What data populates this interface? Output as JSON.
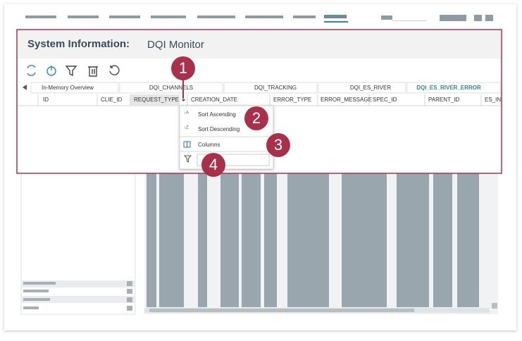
{
  "header": {
    "title": "System Information:",
    "subtitle": "DQI Monitor"
  },
  "tabs": [
    "In-Memory Overview",
    "DQI_CHANNELS",
    "DQI_TRACKING",
    "DQI_ES_RIVER",
    "DQI_ES_RIVER_ERROR"
  ],
  "table": {
    "columns": [
      "ID",
      "CLIE_ID",
      "REQUEST_TYPE",
      "CREATION_DATE",
      "ERROR_TYPE",
      "ERROR_MESSAGE",
      "SPEC_ID",
      "PARENT_ID",
      "ES_IN"
    ]
  },
  "menu": {
    "items": [
      "Sort Ascending",
      "Sort Descending",
      "Columns"
    ]
  },
  "callouts": [
    "1",
    "2",
    "3",
    "4"
  ]
}
